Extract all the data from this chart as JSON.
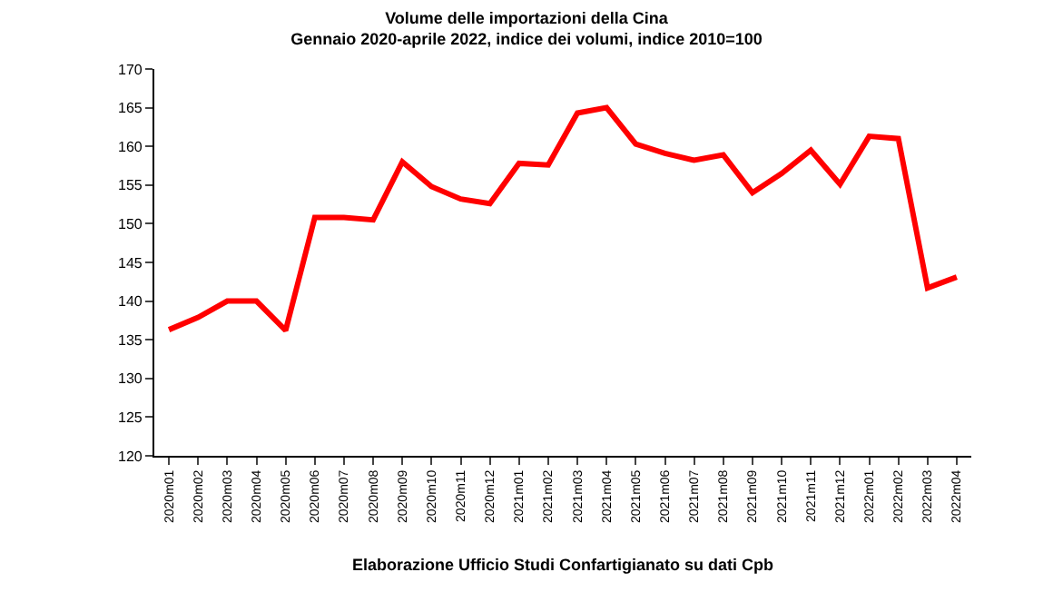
{
  "chart_data": {
    "type": "line",
    "title": "Volume delle importazioni della Cina",
    "subtitle": "Gennaio 2020-aprile 2022, indice dei volumi, indice 2010=100",
    "categories": [
      "2020m01",
      "2020m02",
      "2020m03",
      "2020m04",
      "2020m05",
      "2020m06",
      "2020m07",
      "2020m08",
      "2020m09",
      "2020m10",
      "2020m11",
      "2020m12",
      "2021m01",
      "2021m02",
      "2021m03",
      "2021m04",
      "2021m05",
      "2021m06",
      "2021m07",
      "2021m08",
      "2021m09",
      "2021m10",
      "2021m11",
      "2021m12",
      "2022m01",
      "2022m02",
      "2022m03",
      "2022m04"
    ],
    "series": [
      {
        "color": "#ff0000",
        "values": [
          136.3,
          137.9,
          140,
          140,
          136.2,
          150.8,
          150.8,
          150.5,
          158,
          154.8,
          153.2,
          152.6,
          157.8,
          157.6,
          164.3,
          165,
          160.3,
          159.1,
          158.2,
          158.9,
          154,
          156.5,
          159.5,
          155.1,
          161.3,
          161,
          141.7,
          143.1
        ]
      }
    ],
    "ylim": [
      120,
      170
    ],
    "yticks": [
      120,
      125,
      130,
      135,
      140,
      145,
      150,
      155,
      160,
      165,
      170
    ],
    "grid": false,
    "marker": "none",
    "line_style": "solid",
    "annotations": [
      "Elaborazione Ufficio Studi Confartigianato su dati Cpb"
    ]
  }
}
